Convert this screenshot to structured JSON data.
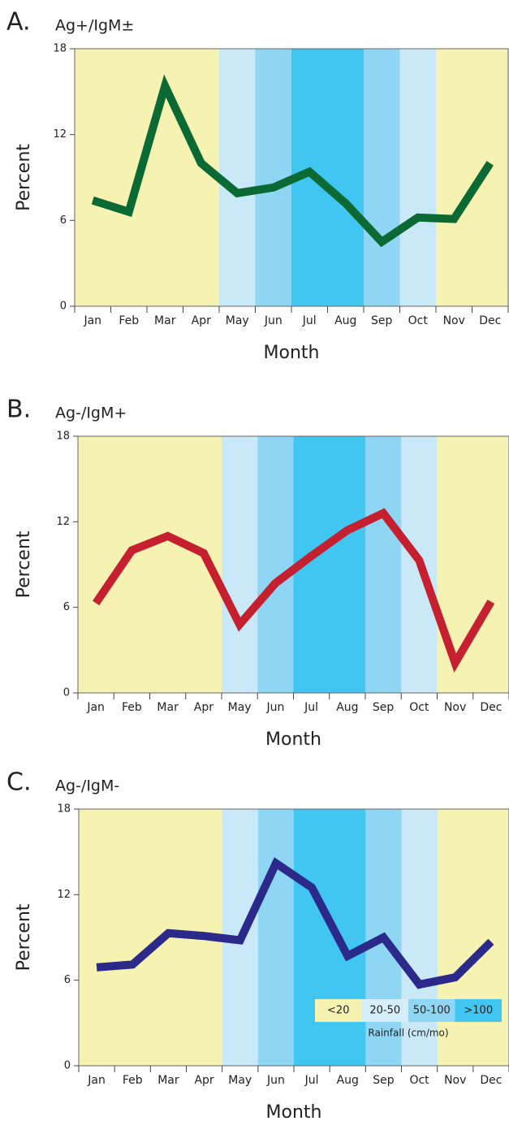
{
  "chart_data": [
    {
      "type": "line",
      "panel": "A.",
      "title": "Ag+/IgM±",
      "x_label": "Month",
      "y_label": "Percent",
      "categories": [
        "Jan",
        "Feb",
        "Mar",
        "Apr",
        "May",
        "Jun",
        "Jul",
        "Aug",
        "Sep",
        "Oct",
        "Nov",
        "Dec"
      ],
      "series": [
        {
          "name": "Ag+/IgM±",
          "color": "#0b6a34",
          "values": [
            7.4,
            6.6,
            15.4,
            10.0,
            7.9,
            8.3,
            9.4,
            7.2,
            4.5,
            6.2,
            6.1,
            10.0
          ]
        }
      ],
      "month_colors": [
        "#f6f3b2",
        "#f6f3b2",
        "#f6f3b2",
        "#f6f3b2",
        "#c9e9f9",
        "#8fd5f4",
        "#40c6f1",
        "#40c6f1",
        "#8fd5f4",
        "#c9e9f9",
        "#f6f3b2",
        "#f6f3b2"
      ],
      "ylim": [
        0,
        18
      ],
      "yticks": [
        0,
        6,
        12,
        18
      ]
    },
    {
      "type": "line",
      "panel": "B.",
      "title": "Ag-/IgM+",
      "x_label": "Month",
      "y_label": "Percent",
      "categories": [
        "Jan",
        "Feb",
        "Mar",
        "Apr",
        "May",
        "Jun",
        "Jul",
        "Aug",
        "Sep",
        "Oct",
        "Nov",
        "Dec"
      ],
      "series": [
        {
          "name": "Ag-/IgM+",
          "color": "#c4202f",
          "values": [
            6.3,
            10.0,
            11.0,
            9.8,
            4.8,
            7.7,
            9.6,
            11.4,
            12.6,
            9.3,
            2.1,
            6.4
          ]
        }
      ],
      "month_colors": [
        "#f6f3b2",
        "#f6f3b2",
        "#f6f3b2",
        "#f6f3b2",
        "#c9e9f9",
        "#8fd5f4",
        "#40c6f1",
        "#40c6f1",
        "#8fd5f4",
        "#c9e9f9",
        "#f6f3b2",
        "#f6f3b2"
      ],
      "ylim": [
        0,
        18
      ],
      "yticks": [
        0,
        6,
        12,
        18
      ]
    },
    {
      "type": "line",
      "panel": "C.",
      "title": "Ag-/IgM-",
      "x_label": "Month",
      "y_label": "Percent",
      "categories": [
        "Jan",
        "Feb",
        "Mar",
        "Apr",
        "May",
        "Jun",
        "Jul",
        "Aug",
        "Sep",
        "Oct",
        "Nov",
        "Dec"
      ],
      "series": [
        {
          "name": "Ag-/IgM-",
          "color": "#2b2a8a",
          "values": [
            6.9,
            7.1,
            9.3,
            9.1,
            8.8,
            14.2,
            12.5,
            7.7,
            9.0,
            5.7,
            6.2,
            8.7
          ]
        }
      ],
      "month_colors": [
        "#f6f3b2",
        "#f6f3b2",
        "#f6f3b2",
        "#f6f3b2",
        "#c9e9f9",
        "#8fd5f4",
        "#40c6f1",
        "#40c6f1",
        "#8fd5f4",
        "#c9e9f9",
        "#f6f3b2",
        "#f6f3b2"
      ],
      "ylim": [
        0,
        18
      ],
      "yticks": [
        0,
        6,
        12,
        18
      ],
      "legend": {
        "title": "Rainfall (cm/mo)",
        "classes": [
          {
            "label": "<20",
            "color": "#f6f3b2"
          },
          {
            "label": "20-50",
            "color": "#d6eefa"
          },
          {
            "label": "50-100",
            "color": "#8fd5f4"
          },
          {
            "label": ">100",
            "color": "#40c6f1"
          }
        ]
      }
    }
  ]
}
